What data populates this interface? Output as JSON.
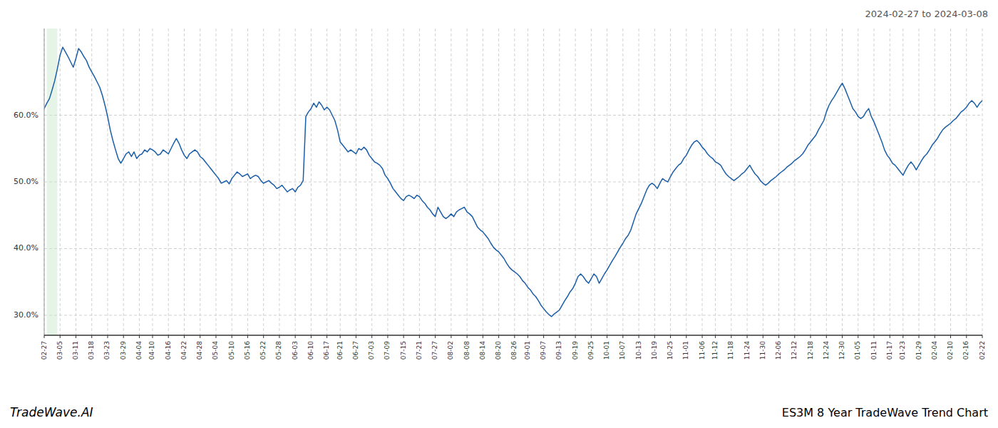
{
  "chart_data": {
    "type": "line",
    "title": "ES3M 8 Year TradeWave Trend Chart",
    "subtitle": "2024-02-27 to 2024-03-08",
    "annotations": [
      "TradeWave.AI"
    ],
    "color": "#1a5ea8",
    "grid": true,
    "ylim": [
      0.27,
      0.73
    ],
    "yticks": [
      {
        "value": 0.3,
        "label": "30.0%"
      },
      {
        "value": 0.4,
        "label": "40.0%"
      },
      {
        "value": 0.5,
        "label": "50.0%"
      },
      {
        "value": 0.6,
        "label": "60.0%"
      }
    ],
    "shaded_span": {
      "start": 1,
      "end": 5,
      "color": "#c8e6c9"
    },
    "categories": [
      "02-27",
      null,
      null,
      null,
      null,
      null,
      "03-05",
      null,
      null,
      null,
      null,
      null,
      "03-11",
      null,
      null,
      null,
      null,
      null,
      "03-18",
      null,
      null,
      null,
      null,
      null,
      "03-23",
      null,
      null,
      null,
      null,
      null,
      "03-29",
      null,
      null,
      null,
      null,
      null,
      "04-04",
      null,
      null,
      null,
      null,
      "04-10",
      null,
      null,
      null,
      null,
      null,
      "04-16",
      null,
      null,
      null,
      null,
      null,
      "04-22",
      null,
      null,
      null,
      null,
      null,
      "04-28",
      null,
      null,
      null,
      null,
      null,
      "05-04",
      null,
      null,
      null,
      null,
      null,
      "05-10",
      null,
      null,
      null,
      null,
      null,
      "05-16",
      null,
      null,
      null,
      null,
      null,
      "05-22",
      null,
      null,
      null,
      null,
      null,
      "05-28",
      null,
      null,
      null,
      null,
      null,
      "06-03",
      null,
      null,
      null,
      null,
      null,
      "06-10",
      null,
      null,
      null,
      null,
      null,
      "06-17",
      null,
      null,
      null,
      null,
      "06-21",
      null,
      null,
      null,
      null,
      null,
      "06-27",
      null,
      null,
      null,
      null,
      null,
      "07-03",
      null,
      null,
      null,
      null,
      null,
      "07-09",
      null,
      null,
      null,
      null,
      null,
      "07-15",
      null,
      null,
      null,
      null,
      null,
      "07-21",
      null,
      null,
      null,
      null,
      null,
      "07-27",
      null,
      null,
      null,
      null,
      null,
      "08-02",
      null,
      null,
      null,
      null,
      null,
      "08-08",
      null,
      null,
      null,
      null,
      null,
      "08-14",
      null,
      null,
      null,
      null,
      null,
      "08-20",
      null,
      null,
      null,
      null,
      null,
      "08-26",
      null,
      null,
      null,
      null,
      "09-01",
      null,
      null,
      null,
      null,
      null,
      "09-07",
      null,
      null,
      null,
      null,
      null,
      "09-13",
      null,
      null,
      null,
      null,
      null,
      "09-19",
      null,
      null,
      null,
      null,
      null,
      "09-25",
      null,
      null,
      null,
      null,
      null,
      "10-01",
      null,
      null,
      null,
      null,
      null,
      "10-07",
      null,
      null,
      null,
      null,
      null,
      "10-13",
      null,
      null,
      null,
      null,
      null,
      "10-19",
      null,
      null,
      null,
      null,
      null,
      "10-25",
      null,
      null,
      null,
      null,
      null,
      "11-01",
      null,
      null,
      null,
      null,
      null,
      "11-06",
      null,
      null,
      null,
      null,
      "11-12",
      null,
      null,
      null,
      null,
      null,
      "11-18",
      null,
      null,
      null,
      null,
      null,
      "11-24",
      null,
      null,
      null,
      null,
      null,
      "11-30",
      null,
      null,
      null,
      null,
      null,
      "12-06",
      null,
      null,
      null,
      null,
      null,
      "12-12",
      null,
      null,
      null,
      null,
      null,
      "12-18",
      null,
      null,
      null,
      null,
      null,
      "12-24",
      null,
      null,
      null,
      null,
      null,
      "12-30",
      null,
      null,
      null,
      null,
      null,
      "01-05",
      null,
      null,
      null,
      null,
      null,
      "01-11",
      null,
      null,
      null,
      null,
      null,
      "01-17",
      null,
      null,
      null,
      null,
      "01-23",
      null,
      null,
      null,
      null,
      null,
      "01-29",
      null,
      null,
      null,
      null,
      null,
      "02-04",
      null,
      null,
      null,
      null,
      null,
      "02-10",
      null,
      null,
      null,
      null,
      null,
      "02-16",
      null,
      null,
      null,
      null,
      null,
      "02-22"
    ],
    "values": [
      0.61,
      0.618,
      0.625,
      0.638,
      0.652,
      0.67,
      0.69,
      0.702,
      0.695,
      0.688,
      0.68,
      0.672,
      0.685,
      0.7,
      0.695,
      0.688,
      0.682,
      0.672,
      0.665,
      0.658,
      0.65,
      0.642,
      0.63,
      0.615,
      0.598,
      0.578,
      0.562,
      0.548,
      0.535,
      0.528,
      0.535,
      0.542,
      0.545,
      0.538,
      0.545,
      0.535,
      0.54,
      0.542,
      0.548,
      0.545,
      0.55,
      0.548,
      0.545,
      0.54,
      0.542,
      0.548,
      0.545,
      0.542,
      0.55,
      0.558,
      0.565,
      0.558,
      0.548,
      0.54,
      0.535,
      0.542,
      0.545,
      0.548,
      0.545,
      0.538,
      0.535,
      0.53,
      0.525,
      0.52,
      0.515,
      0.51,
      0.505,
      0.498,
      0.5,
      0.502,
      0.497,
      0.505,
      0.51,
      0.515,
      0.512,
      0.508,
      0.51,
      0.512,
      0.505,
      0.508,
      0.51,
      0.508,
      0.502,
      0.498,
      0.5,
      0.502,
      0.498,
      0.495,
      0.49,
      0.492,
      0.495,
      0.49,
      0.485,
      0.488,
      0.49,
      0.485,
      0.492,
      0.495,
      0.502,
      0.598,
      0.605,
      0.61,
      0.618,
      0.612,
      0.62,
      0.615,
      0.608,
      0.612,
      0.608,
      0.6,
      0.592,
      0.578,
      0.56,
      0.555,
      0.55,
      0.545,
      0.548,
      0.545,
      0.542,
      0.55,
      0.548,
      0.552,
      0.548,
      0.54,
      0.535,
      0.53,
      0.528,
      0.525,
      0.52,
      0.51,
      0.505,
      0.498,
      0.49,
      0.485,
      0.48,
      0.475,
      0.472,
      0.478,
      0.48,
      0.478,
      0.475,
      0.48,
      0.478,
      0.472,
      0.468,
      0.462,
      0.458,
      0.452,
      0.448,
      0.462,
      0.455,
      0.448,
      0.445,
      0.448,
      0.452,
      0.448,
      0.455,
      0.458,
      0.46,
      0.462,
      0.455,
      0.452,
      0.448,
      0.44,
      0.432,
      0.428,
      0.425,
      0.42,
      0.415,
      0.408,
      0.402,
      0.398,
      0.395,
      0.39,
      0.385,
      0.378,
      0.372,
      0.368,
      0.365,
      0.362,
      0.358,
      0.352,
      0.348,
      0.342,
      0.338,
      0.332,
      0.328,
      0.322,
      0.315,
      0.31,
      0.305,
      0.301,
      0.298,
      0.302,
      0.305,
      0.308,
      0.315,
      0.322,
      0.328,
      0.335,
      0.34,
      0.348,
      0.358,
      0.362,
      0.358,
      0.352,
      0.348,
      0.355,
      0.362,
      0.358,
      0.348,
      0.355,
      0.362,
      0.368,
      0.375,
      0.382,
      0.388,
      0.395,
      0.402,
      0.408,
      0.415,
      0.42,
      0.428,
      0.44,
      0.452,
      0.46,
      0.468,
      0.478,
      0.488,
      0.495,
      0.498,
      0.495,
      0.49,
      0.498,
      0.505,
      0.502,
      0.5,
      0.508,
      0.515,
      0.52,
      0.525,
      0.528,
      0.535,
      0.54,
      0.548,
      0.555,
      0.56,
      0.562,
      0.558,
      0.552,
      0.548,
      0.542,
      0.538,
      0.535,
      0.53,
      0.528,
      0.525,
      0.518,
      0.512,
      0.508,
      0.505,
      0.502,
      0.505,
      0.508,
      0.512,
      0.515,
      0.52,
      0.525,
      0.518,
      0.512,
      0.508,
      0.502,
      0.498,
      0.495,
      0.498,
      0.502,
      0.505,
      0.508,
      0.512,
      0.515,
      0.518,
      0.522,
      0.525,
      0.528,
      0.532,
      0.535,
      0.538,
      0.542,
      0.548,
      0.555,
      0.56,
      0.565,
      0.57,
      0.578,
      0.585,
      0.592,
      0.605,
      0.615,
      0.622,
      0.628,
      0.635,
      0.642,
      0.648,
      0.64,
      0.63,
      0.62,
      0.61,
      0.605,
      0.598,
      0.595,
      0.598,
      0.605,
      0.61,
      0.598,
      0.59,
      0.58,
      0.57,
      0.56,
      0.548,
      0.54,
      0.535,
      0.528,
      0.525,
      0.52,
      0.515,
      0.51,
      0.518,
      0.525,
      0.53,
      0.525,
      0.518,
      0.525,
      0.532,
      0.538,
      0.542,
      0.548,
      0.555,
      0.56,
      0.565,
      0.572,
      0.578,
      0.582,
      0.585,
      0.588,
      0.592,
      0.595,
      0.6,
      0.605,
      0.608,
      0.612,
      0.618,
      0.622,
      0.618,
      0.612,
      0.618,
      0.622
    ]
  }
}
